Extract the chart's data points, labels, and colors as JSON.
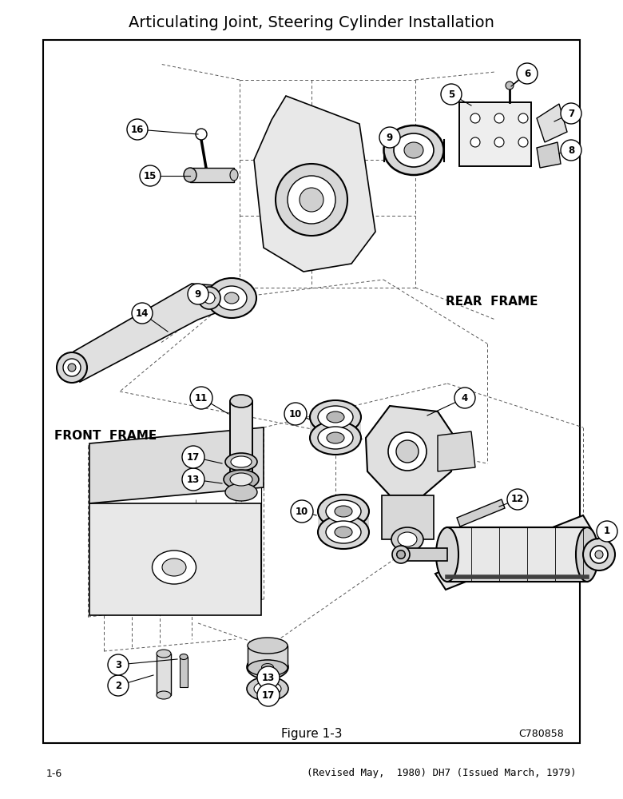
{
  "title": "Articulating Joint, Steering Cylinder Installation",
  "figure_label": "Figure 1-3",
  "figure_code": "C780858",
  "page_left": "1-6",
  "page_right": "(Revised May,  1980) DH7 (Issued March, 1979)",
  "rear_frame_label": "REAR  FRAME",
  "front_frame_label": "FRONT  FRAME",
  "bg_color": "#ffffff",
  "border_color": "#000000",
  "text_color": "#000000"
}
